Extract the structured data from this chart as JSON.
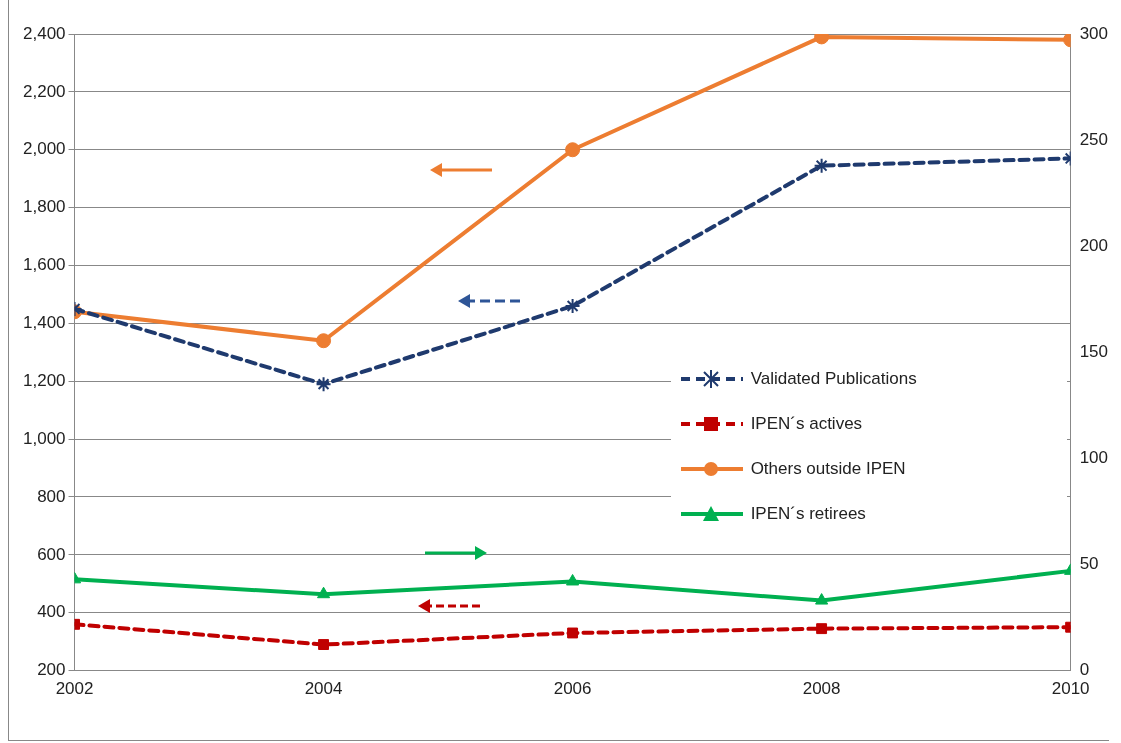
{
  "chart_data": {
    "type": "line",
    "x": [
      2002,
      2004,
      2006,
      2008,
      2010
    ],
    "xlim": [
      2002,
      2010
    ],
    "xticks": [
      2002,
      2004,
      2006,
      2008,
      2010
    ],
    "ylim": [
      200,
      2400
    ],
    "yticks": [
      {
        "value": 200,
        "label": "200"
      },
      {
        "value": 400,
        "label": "400"
      },
      {
        "value": 600,
        "label": "600"
      },
      {
        "value": 800,
        "label": "800"
      },
      {
        "value": 1000,
        "label": "1,000"
      },
      {
        "value": 1200,
        "label": "1,200"
      },
      {
        "value": 1400,
        "label": "1,400"
      },
      {
        "value": 1600,
        "label": "1,600"
      },
      {
        "value": 1800,
        "label": "1,800"
      },
      {
        "value": 2000,
        "label": "2,000"
      },
      {
        "value": 2200,
        "label": "2,200"
      },
      {
        "value": 2400,
        "label": "2,400"
      }
    ],
    "y2lim": [
      0,
      300
    ],
    "y2ticks": [
      0,
      50,
      100,
      150,
      200,
      250,
      300
    ],
    "grid": "y",
    "legend": "right",
    "series": [
      {
        "name": "Validated Publications",
        "color": "#1f3a6e",
        "values": [
          1450,
          1190,
          1460,
          1945,
          1970
        ],
        "marker": "cross",
        "line_style": "dashed"
      },
      {
        "name": "IPEN´s actives",
        "color": "#c00000",
        "values": [
          360,
          290,
          330,
          345,
          350
        ],
        "marker": "square",
        "line_style": "dashed"
      },
      {
        "name": "Others outside IPEN",
        "color": "#ed7d31",
        "values": [
          1440,
          1340,
          2000,
          2390,
          2380
        ],
        "marker": "circle",
        "line_style": "solid"
      },
      {
        "name": "IPEN´s retirees",
        "color": "#00b050",
        "values": [
          43,
          36,
          42,
          33,
          47
        ],
        "marker": "triangle",
        "line_style": "solid",
        "axis": "y2"
      }
    ]
  }
}
